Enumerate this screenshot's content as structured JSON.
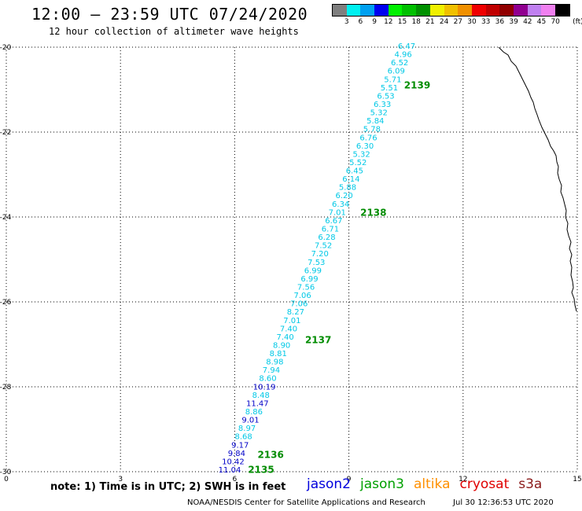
{
  "header": {
    "title": "12:00 – 23:59 UTC 07/24/2020",
    "subtitle": "12 hour collection of altimeter wave heights"
  },
  "legend": {
    "unit": "(ft)",
    "colors": [
      "#7f7f7f",
      "#00f0f0",
      "#00a0f0",
      "#0000f0",
      "#00f000",
      "#00c000",
      "#009000",
      "#f0f000",
      "#f0c000",
      "#f09000",
      "#f00000",
      "#c00000",
      "#900000",
      "#900090",
      "#c080f0",
      "#f080f0",
      "#000000"
    ],
    "labels": [
      "3",
      "6",
      "9",
      "12",
      "15",
      "18",
      "21",
      "24",
      "27",
      "30",
      "33",
      "36",
      "39",
      "42",
      "45",
      "70"
    ]
  },
  "map": {
    "lat_ticks": [
      "-20",
      "-22",
      "-24",
      "-26",
      "-28",
      "-30"
    ],
    "lon_ticks": [
      "0",
      "3",
      "6",
      "9",
      "12",
      "15"
    ],
    "x_range": [
      0,
      15
    ],
    "y_range": [
      -30,
      -20
    ],
    "track_labels": [
      {
        "text": "2139",
        "x": 10.45,
        "y": -20.9
      },
      {
        "text": "2138",
        "x": 9.3,
        "y": -23.9
      },
      {
        "text": "2137",
        "x": 7.85,
        "y": -26.9
      },
      {
        "text": "2136",
        "x": 6.6,
        "y": -29.6
      },
      {
        "text": "2135",
        "x": 6.35,
        "y": -29.95
      }
    ],
    "track_points": [
      {
        "v": "6.47",
        "c": "cyan"
      },
      {
        "v": "4.96",
        "c": "cyan"
      },
      {
        "v": "6.52",
        "c": "cyan"
      },
      {
        "v": "6.09",
        "c": "cyan"
      },
      {
        "v": "5.71",
        "c": "cyan"
      },
      {
        "v": "5.51",
        "c": "cyan"
      },
      {
        "v": "6.53",
        "c": "cyan"
      },
      {
        "v": "6.33",
        "c": "cyan"
      },
      {
        "v": "5.32",
        "c": "cyan"
      },
      {
        "v": "5.84",
        "c": "cyan"
      },
      {
        "v": "5.78",
        "c": "cyan"
      },
      {
        "v": "6.76",
        "c": "cyan"
      },
      {
        "v": "6.30",
        "c": "cyan"
      },
      {
        "v": "5.32",
        "c": "cyan"
      },
      {
        "v": "5.52",
        "c": "cyan"
      },
      {
        "v": "6.45",
        "c": "cyan"
      },
      {
        "v": "6.14",
        "c": "cyan"
      },
      {
        "v": "5.88",
        "c": "cyan"
      },
      {
        "v": "6.20",
        "c": "cyan"
      },
      {
        "v": "6.34",
        "c": "cyan"
      },
      {
        "v": "7.01",
        "c": "cyan"
      },
      {
        "v": "6.67",
        "c": "cyan"
      },
      {
        "v": "6.71",
        "c": "cyan"
      },
      {
        "v": "6.28",
        "c": "cyan"
      },
      {
        "v": "7.52",
        "c": "cyan"
      },
      {
        "v": "7.20",
        "c": "cyan"
      },
      {
        "v": "7.53",
        "c": "cyan"
      },
      {
        "v": "6.99",
        "c": "cyan"
      },
      {
        "v": "6.99",
        "c": "cyan"
      },
      {
        "v": "7.56",
        "c": "cyan"
      },
      {
        "v": "7.06",
        "c": "cyan"
      },
      {
        "v": "7.06",
        "c": "cyan"
      },
      {
        "v": "8.27",
        "c": "cyan"
      },
      {
        "v": "7.01",
        "c": "cyan"
      },
      {
        "v": "7.40",
        "c": "cyan"
      },
      {
        "v": "7.40",
        "c": "cyan"
      },
      {
        "v": "8.90",
        "c": "cyan"
      },
      {
        "v": "8.81",
        "c": "cyan"
      },
      {
        "v": "8.98",
        "c": "cyan"
      },
      {
        "v": "7.94",
        "c": "cyan"
      },
      {
        "v": "8.60",
        "c": "cyan"
      },
      {
        "v": "10.19",
        "c": "blue"
      },
      {
        "v": "8.48",
        "c": "cyan"
      },
      {
        "v": "11.47",
        "c": "blue"
      },
      {
        "v": "8.86",
        "c": "cyan"
      },
      {
        "v": "9.01",
        "c": "blue"
      },
      {
        "v": "8.97",
        "c": "cyan"
      },
      {
        "v": "8.68",
        "c": "cyan"
      },
      {
        "v": "9.17",
        "c": "blue"
      },
      {
        "v": "9.84",
        "c": "blue"
      },
      {
        "v": "10.42",
        "c": "blue"
      },
      {
        "v": "11.04",
        "c": "blue"
      }
    ],
    "colors": {
      "cyan": "#00c8e6",
      "blue": "#0000c8",
      "track_label": "#008c00",
      "coast": "#000000",
      "grid": "#000000"
    }
  },
  "note": "note:  1) Time is in UTC; 2) SWH is in feet",
  "satellites": [
    {
      "name": "jason2",
      "color": "#0000dd"
    },
    {
      "name": "jason3",
      "color": "#00a000"
    },
    {
      "name": "altika",
      "color": "#ff9000"
    },
    {
      "name": "cryosat",
      "color": "#e00000"
    },
    {
      "name": "s3a",
      "color": "#8b1a1a"
    }
  ],
  "footer": {
    "credit": "NOAA/NESDIS Center for Satellite Applications and Research",
    "timestamp": "Jul 30 12:36:53 UTC 2020"
  }
}
